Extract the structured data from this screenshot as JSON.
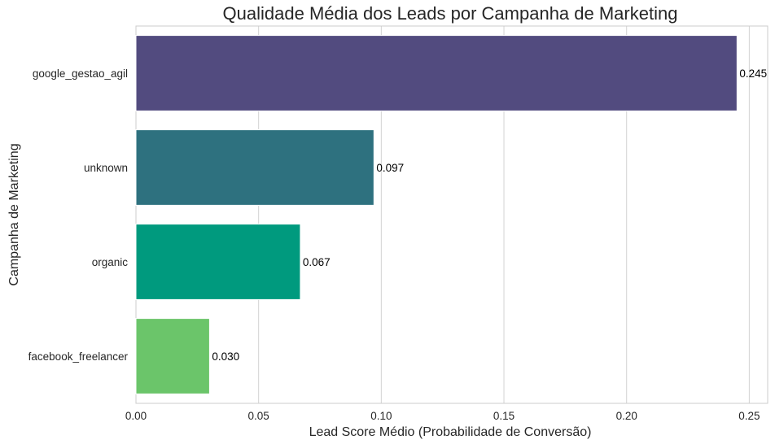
{
  "chart_data": {
    "type": "bar",
    "orientation": "horizontal",
    "title": "Qualidade Média dos Leads por Campanha de Marketing",
    "xlabel": "Lead Score Médio (Probabilidade de Conversão)",
    "ylabel": "Campanha de Marketing",
    "categories": [
      "google_gestao_agil",
      "unknown",
      "organic",
      "facebook_freelancer"
    ],
    "values": [
      0.245,
      0.097,
      0.067,
      0.03
    ],
    "data_labels": [
      "0.245",
      "0.097",
      "0.067",
      "0.030"
    ],
    "colors": [
      "#524b7f",
      "#2e717f",
      "#009a7e",
      "#6bc56a"
    ],
    "xlim": [
      0,
      0.2575
    ],
    "xticks": [
      0.0,
      0.05,
      0.1,
      0.15,
      0.2,
      0.25
    ],
    "xtick_labels": [
      "0.00",
      "0.05",
      "0.10",
      "0.15",
      "0.20",
      "0.25"
    ],
    "grid": "vertical",
    "legend": "none"
  }
}
